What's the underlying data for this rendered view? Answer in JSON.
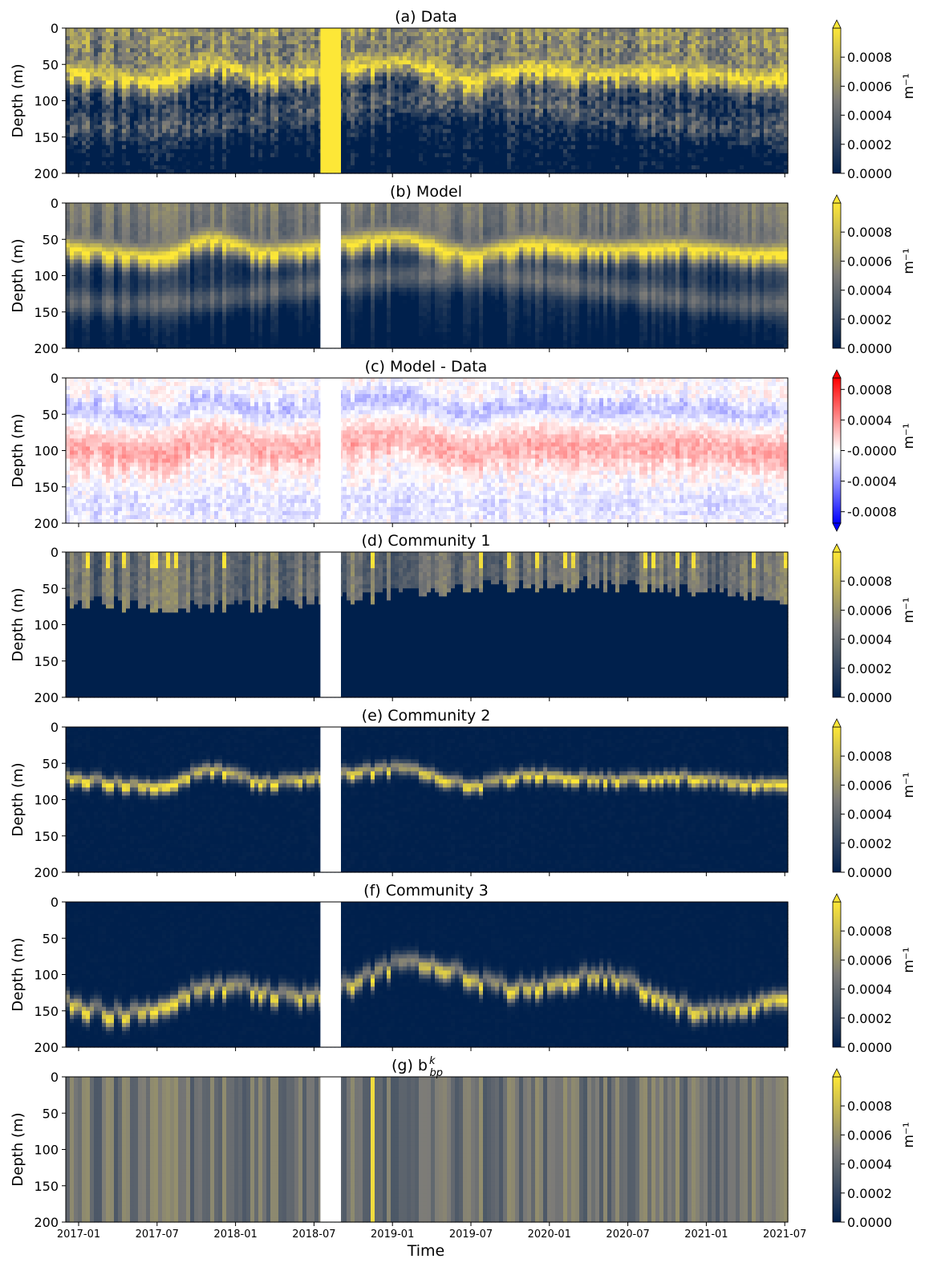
{
  "figure": {
    "xlabel": "Time",
    "x_ticks": [
      "2017-01",
      "2017-07",
      "2018-01",
      "2018-07",
      "2019-01",
      "2019-07",
      "2020-01",
      "2020-07",
      "2021-01",
      "2021-07"
    ],
    "ylabel": "Depth (m)",
    "y_ticks": [
      "0",
      "50",
      "100",
      "150",
      "200"
    ],
    "colorbar_unit": "m⁻¹",
    "colors": {
      "cividis_low": "#00204c",
      "cividis_mid": "#7c7b78",
      "cividis_high": "#fde737",
      "diverging_low": "#0000ff",
      "diverging_mid": "#ffffff",
      "diverging_high": "#ff0000"
    }
  },
  "chart_data": [
    {
      "type": "heatmap",
      "title": "(a) Data",
      "colormap": "cividis",
      "colorbar_ticks": [
        "0.0000",
        "0.0002",
        "0.0004",
        "0.0006",
        "0.0008"
      ],
      "colorbar_extend": "max",
      "pattern": "data",
      "xlim": [
        "2016-12",
        "2021-07"
      ],
      "ylim": [
        200,
        0
      ],
      "gap": [
        "2018-07",
        "2018-09"
      ]
    },
    {
      "type": "heatmap",
      "title": "(b) Model",
      "colormap": "cividis",
      "colorbar_ticks": [
        "0.0000",
        "0.0002",
        "0.0004",
        "0.0006",
        "0.0008"
      ],
      "colorbar_extend": "max",
      "pattern": "model",
      "xlim": [
        "2016-12",
        "2021-07"
      ],
      "ylim": [
        200,
        0
      ],
      "gap": [
        "2018-07",
        "2018-09"
      ]
    },
    {
      "type": "heatmap",
      "title": "(c) Model - Data",
      "colormap": "bwr",
      "colorbar_ticks": [
        "-0.0008",
        "-0.0004",
        "-0.0000",
        "0.0004",
        "0.0008"
      ],
      "colorbar_extend": "both",
      "pattern": "diff",
      "xlim": [
        "2016-12",
        "2021-07"
      ],
      "ylim": [
        200,
        0
      ],
      "gap": [
        "2018-07",
        "2018-09"
      ]
    },
    {
      "type": "heatmap",
      "title": "(d) Community 1",
      "colormap": "cividis",
      "colorbar_ticks": [
        "0.0000",
        "0.0002",
        "0.0004",
        "0.0006",
        "0.0008"
      ],
      "colorbar_extend": "max",
      "pattern": "comm1",
      "xlim": [
        "2016-12",
        "2021-07"
      ],
      "ylim": [
        200,
        0
      ],
      "gap": [
        "2018-07",
        "2018-09"
      ]
    },
    {
      "type": "heatmap",
      "title": "(e) Community 2",
      "colormap": "cividis",
      "colorbar_ticks": [
        "0.0000",
        "0.0002",
        "0.0004",
        "0.0006",
        "0.0008"
      ],
      "colorbar_extend": "max",
      "pattern": "comm2",
      "xlim": [
        "2016-12",
        "2021-07"
      ],
      "ylim": [
        200,
        0
      ],
      "gap": [
        "2018-07",
        "2018-09"
      ]
    },
    {
      "type": "heatmap",
      "title": "(f) Community 3",
      "colormap": "cividis",
      "colorbar_ticks": [
        "0.0000",
        "0.0002",
        "0.0004",
        "0.0006",
        "0.0008"
      ],
      "colorbar_extend": "max",
      "pattern": "comm3",
      "xlim": [
        "2016-12",
        "2021-07"
      ],
      "ylim": [
        200,
        0
      ],
      "gap": [
        "2018-07",
        "2018-09"
      ]
    },
    {
      "type": "heatmap",
      "title": "(g) b",
      "title_sup": "k",
      "title_sub": "bp",
      "colormap": "cividis",
      "colorbar_ticks": [
        "0.0000",
        "0.0002",
        "0.0004",
        "0.0006",
        "0.0008"
      ],
      "colorbar_extend": "max",
      "pattern": "bbp",
      "xlim": [
        "2016-12",
        "2021-07"
      ],
      "ylim": [
        200,
        0
      ],
      "gap": [
        "2018-07",
        "2018-09"
      ]
    }
  ]
}
